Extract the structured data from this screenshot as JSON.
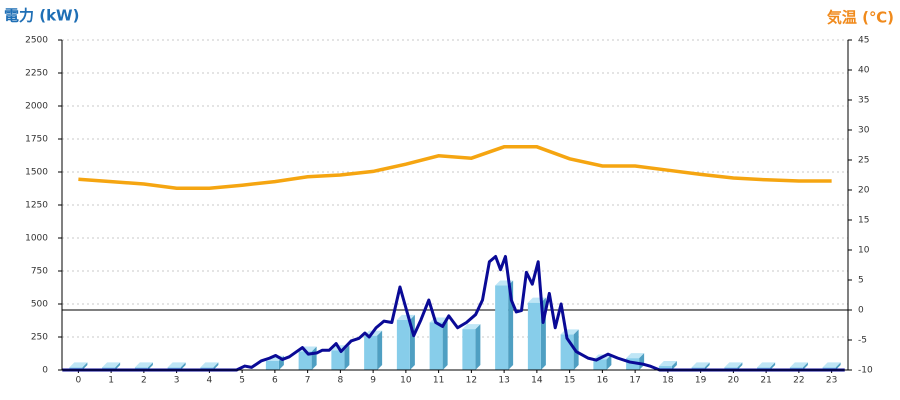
{
  "chart_data": {
    "type": "combo",
    "title_left": "電力 (kW)",
    "title_right": "気温 (℃)",
    "categories": [
      "0",
      "1",
      "2",
      "3",
      "4",
      "5",
      "6",
      "7",
      "8",
      "9",
      "10",
      "11",
      "12",
      "13",
      "14",
      "15",
      "16",
      "17",
      "18",
      "19",
      "20",
      "21",
      "22",
      "23"
    ],
    "xlim": [
      -0.5,
      23.5
    ],
    "ylim": [
      0,
      2500
    ],
    "yticks": [
      0,
      250,
      500,
      750,
      1000,
      1250,
      1500,
      1750,
      2000,
      2250,
      2500
    ],
    "y2lim": [
      -10,
      45
    ],
    "y2ticks": [
      -10,
      -5,
      0,
      5,
      10,
      15,
      20,
      25,
      30,
      35,
      40,
      45
    ],
    "grid": true,
    "bars": {
      "color": "#87cdea",
      "values": [
        20,
        20,
        20,
        20,
        20,
        0,
        70,
        140,
        150,
        260,
        380,
        360,
        310,
        640,
        510,
        270,
        80,
        90,
        30,
        20,
        20,
        20,
        20,
        20
      ]
    },
    "power": {
      "color": "#0a0a96",
      "x": [
        -0.49,
        4.83,
        5.08,
        5.29,
        5.59,
        5.84,
        6.02,
        6.23,
        6.44,
        6.84,
        7.02,
        7.29,
        7.45,
        7.66,
        7.87,
        8.02,
        8.33,
        8.57,
        8.75,
        8.88,
        9.09,
        9.33,
        9.57,
        9.82,
        10.24,
        10.46,
        10.7,
        10.91,
        11.12,
        11.31,
        11.58,
        11.85,
        12.13,
        12.34,
        12.55,
        12.74,
        12.89,
        13.04,
        13.22,
        13.37,
        13.53,
        13.68,
        13.86,
        14.04,
        14.19,
        14.38,
        14.56,
        14.74,
        14.92,
        15.2,
        15.56,
        15.81,
        16.17,
        16.47,
        16.84,
        17.23,
        17.45,
        17.75,
        23.4
      ],
      "values": [
        0,
        0,
        30,
        20,
        70,
        90,
        110,
        80,
        100,
        170,
        120,
        130,
        150,
        150,
        200,
        140,
        220,
        240,
        280,
        250,
        320,
        370,
        360,
        629,
        260,
        380,
        530,
        360,
        330,
        410,
        320,
        360,
        420,
        530,
        820,
        860,
        760,
        860,
        530,
        440,
        450,
        740,
        650,
        820,
        360,
        580,
        320,
        500,
        240,
        140,
        90,
        75,
        120,
        90,
        60,
        45,
        30,
        0,
        0
      ]
    },
    "temperature": {
      "color": "#f5a511",
      "axis": "y2",
      "values": [
        21.8,
        21.4,
        21.0,
        20.3,
        20.3,
        20.8,
        21.4,
        22.2,
        22.5,
        23.1,
        24.3,
        25.7,
        25.3,
        27.2,
        27.2,
        25.2,
        24.0,
        24.0,
        23.3,
        22.6,
        22.0,
        21.7,
        21.5,
        21.5
      ]
    }
  }
}
